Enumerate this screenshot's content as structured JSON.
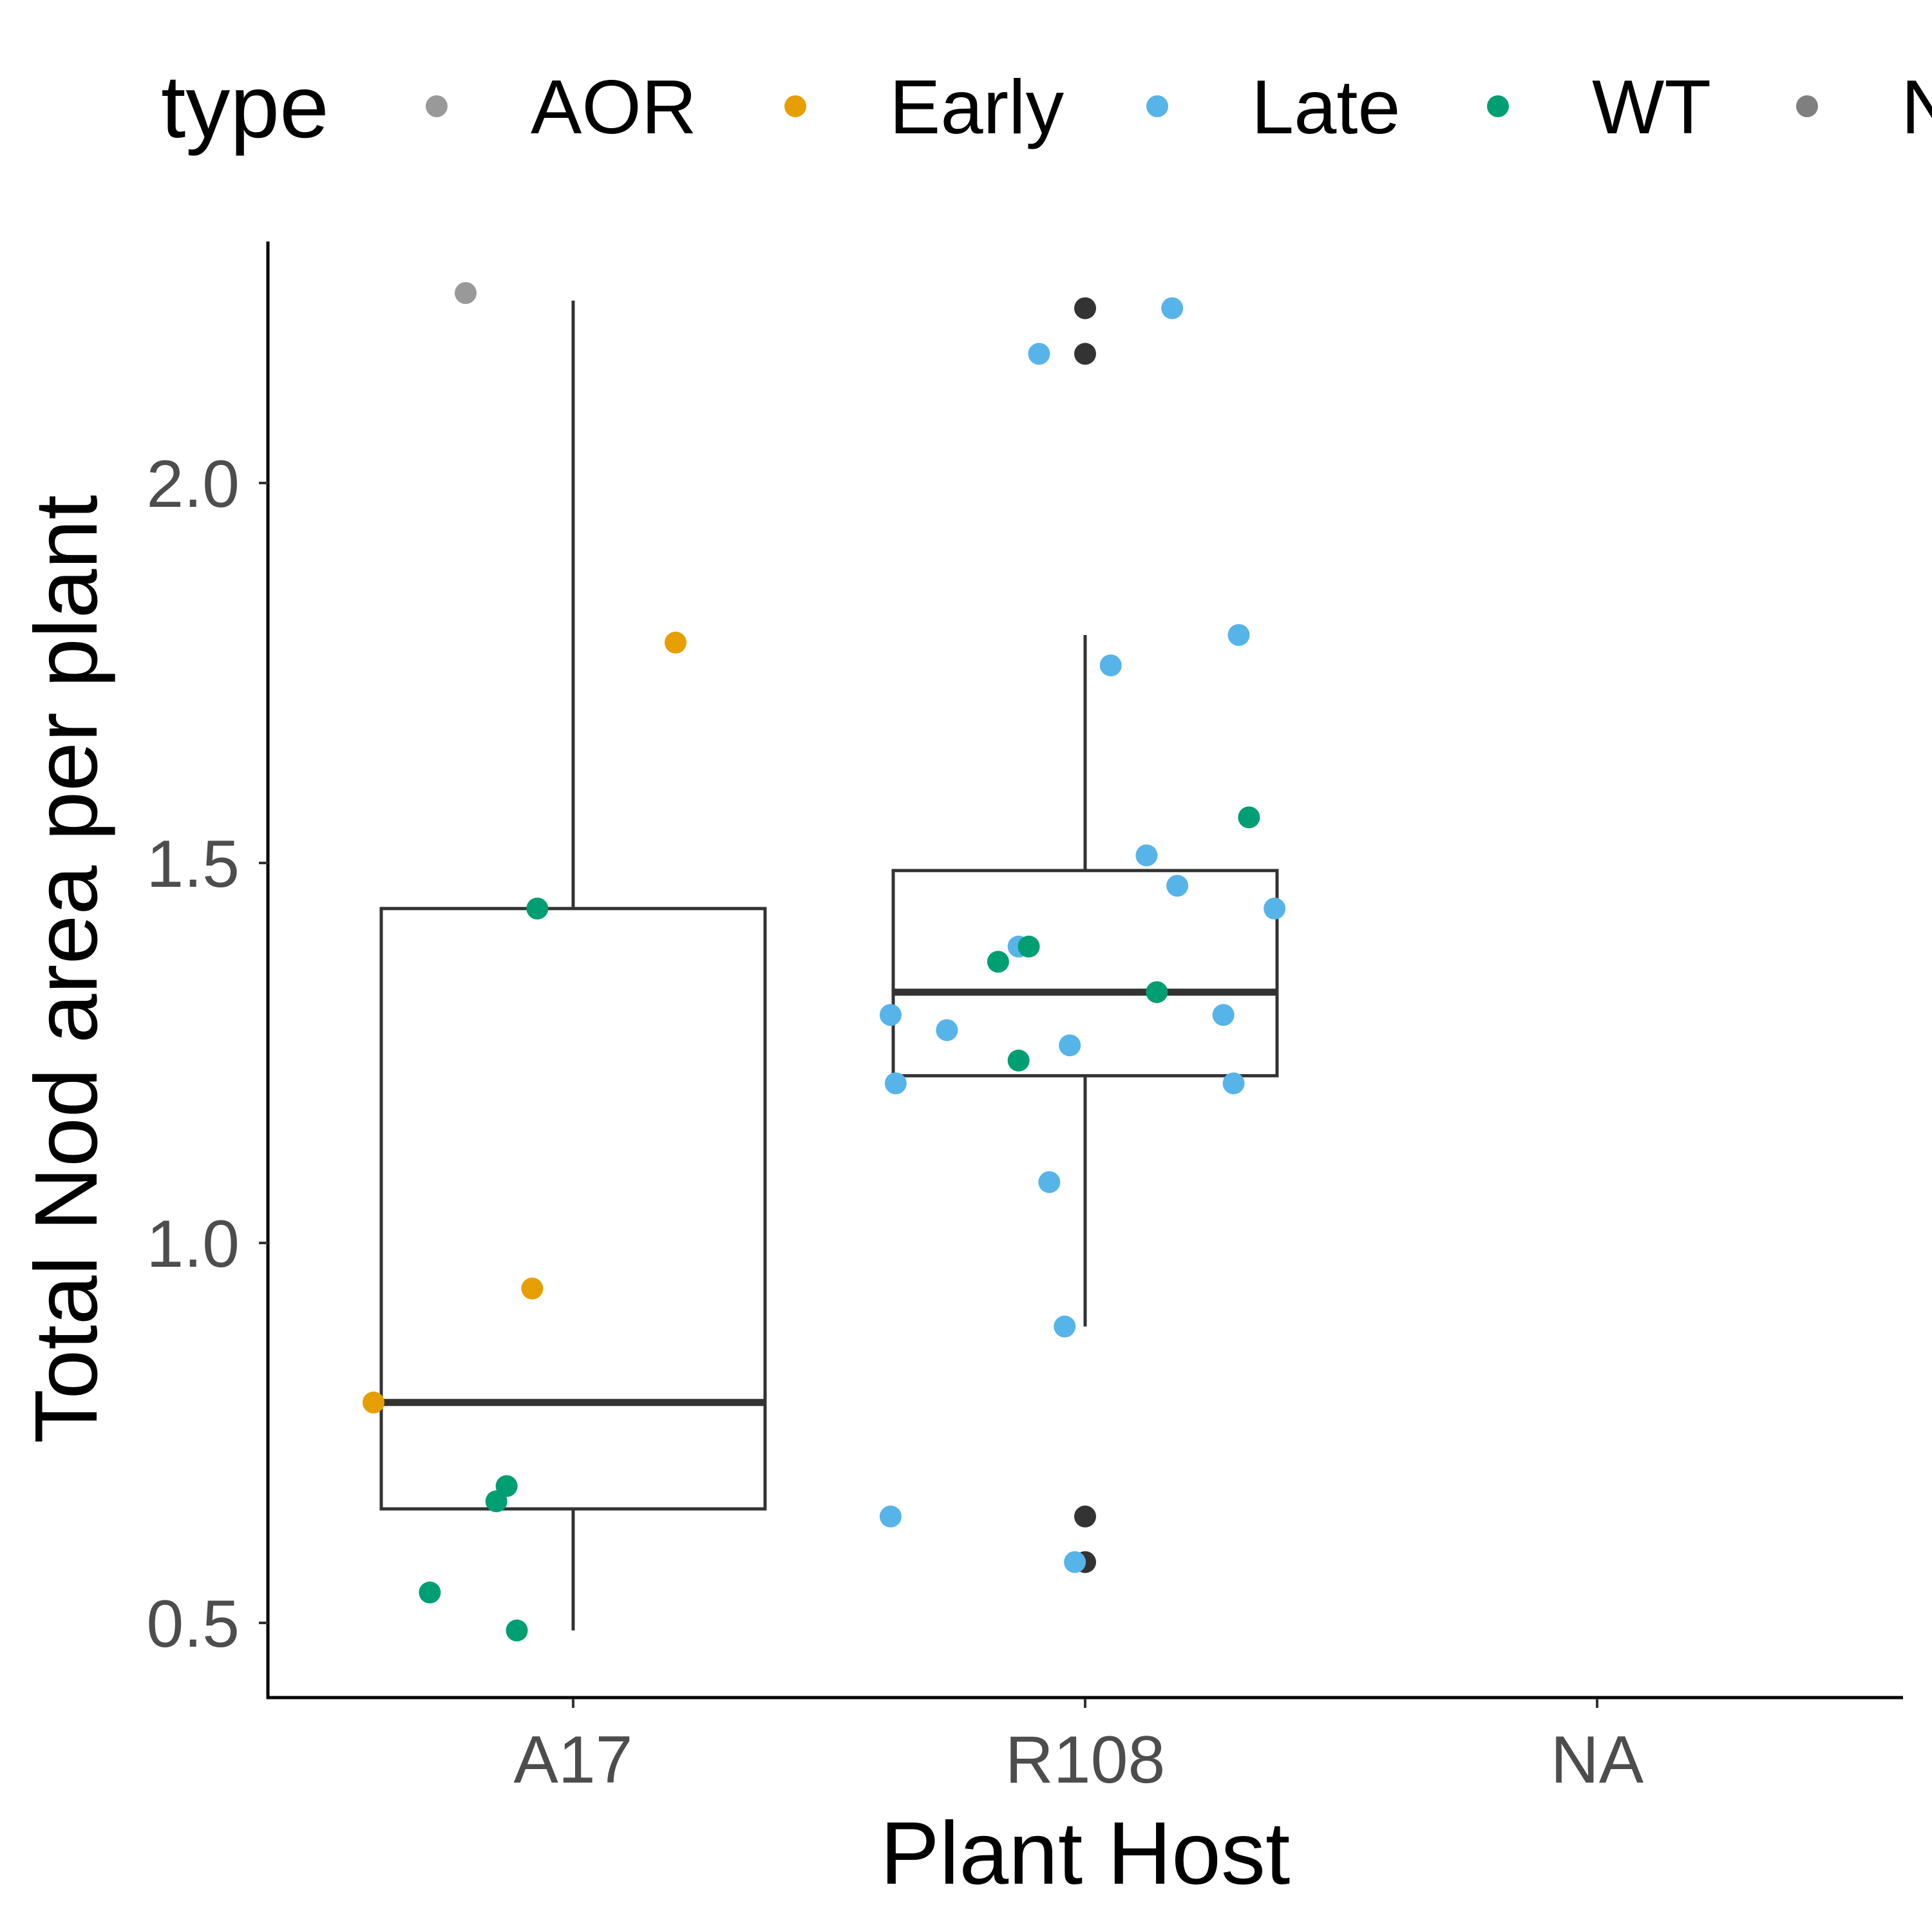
{
  "chart_data": {
    "type": "box",
    "xlabel": "Plant Host",
    "ylabel": "Total Nod area per plant",
    "categories": [
      "A17",
      "R108",
      "NA"
    ],
    "y_ticks": [
      "0.5",
      "1.0",
      "1.5",
      "2.0"
    ],
    "ylim": [
      0.4,
      2.32
    ],
    "grid": false,
    "legend": {
      "title": "type",
      "position": "top",
      "entries": [
        {
          "label": "AOR",
          "color": "#999999"
        },
        {
          "label": "Early",
          "color": "#E69F00"
        },
        {
          "label": "Late",
          "color": "#56B4E9"
        },
        {
          "label": "WT",
          "color": "#009E73"
        },
        {
          "label": "NA",
          "color": "#7F7F7F"
        }
      ]
    },
    "boxes": [
      {
        "category": "A17",
        "whisker_low": 0.49,
        "q1": 0.65,
        "median": 0.79,
        "q3": 1.44,
        "whisker_high": 2.24
      },
      {
        "category": "R108",
        "whisker_low": 0.89,
        "q1": 1.22,
        "median": 1.33,
        "q3": 1.49,
        "whisker_high": 1.8
      },
      {
        "category": "NA"
      }
    ],
    "outliers": [
      {
        "category": "R108",
        "y": 2.23
      },
      {
        "category": "R108",
        "y": 2.17
      },
      {
        "category": "R108",
        "y": 0.64
      },
      {
        "category": "R108",
        "y": 0.58
      }
    ],
    "points": [
      {
        "category": "A17",
        "type": "AOR",
        "jitter": -0.21,
        "y": 2.25
      },
      {
        "category": "A17",
        "type": "Early",
        "jitter": 0.2,
        "y": 1.79
      },
      {
        "category": "A17",
        "type": "Early",
        "jitter": -0.08,
        "y": 0.94
      },
      {
        "category": "A17",
        "type": "Early",
        "jitter": -0.39,
        "y": 0.79
      },
      {
        "category": "A17",
        "type": "WT",
        "jitter": -0.07,
        "y": 1.44
      },
      {
        "category": "A17",
        "type": "WT",
        "jitter": -0.13,
        "y": 0.68
      },
      {
        "category": "A17",
        "type": "WT",
        "jitter": -0.15,
        "y": 0.66
      },
      {
        "category": "A17",
        "type": "WT",
        "jitter": -0.28,
        "y": 0.54
      },
      {
        "category": "A17",
        "type": "WT",
        "jitter": -0.11,
        "y": 0.49
      },
      {
        "category": "R108",
        "type": "Late",
        "jitter": 0.17,
        "y": 2.23
      },
      {
        "category": "R108",
        "type": "Late",
        "jitter": -0.09,
        "y": 2.17
      },
      {
        "category": "R108",
        "type": "Late",
        "jitter": 0.3,
        "y": 1.8
      },
      {
        "category": "R108",
        "type": "Late",
        "jitter": 0.05,
        "y": 1.76
      },
      {
        "category": "R108",
        "type": "Late",
        "jitter": 0.12,
        "y": 1.51
      },
      {
        "category": "R108",
        "type": "Late",
        "jitter": 0.18,
        "y": 1.47
      },
      {
        "category": "R108",
        "type": "Late",
        "jitter": 0.37,
        "y": 1.44
      },
      {
        "category": "R108",
        "type": "Late",
        "jitter": -0.13,
        "y": 1.39
      },
      {
        "category": "R108",
        "type": "Late",
        "jitter": -0.38,
        "y": 1.3
      },
      {
        "category": "R108",
        "type": "Late",
        "jitter": 0.27,
        "y": 1.3
      },
      {
        "category": "R108",
        "type": "Late",
        "jitter": -0.27,
        "y": 1.28
      },
      {
        "category": "R108",
        "type": "Late",
        "jitter": -0.03,
        "y": 1.26
      },
      {
        "category": "R108",
        "type": "Late",
        "jitter": -0.37,
        "y": 1.21
      },
      {
        "category": "R108",
        "type": "Late",
        "jitter": 0.29,
        "y": 1.21
      },
      {
        "category": "R108",
        "type": "Late",
        "jitter": -0.07,
        "y": 1.08
      },
      {
        "category": "R108",
        "type": "Late",
        "jitter": -0.04,
        "y": 0.89
      },
      {
        "category": "R108",
        "type": "Late",
        "jitter": -0.38,
        "y": 0.64
      },
      {
        "category": "R108",
        "type": "Late",
        "jitter": -0.02,
        "y": 0.58
      },
      {
        "category": "R108",
        "type": "WT",
        "jitter": 0.32,
        "y": 1.56
      },
      {
        "category": "R108",
        "type": "WT",
        "jitter": -0.11,
        "y": 1.39
      },
      {
        "category": "R108",
        "type": "WT",
        "jitter": -0.17,
        "y": 1.37
      },
      {
        "category": "R108",
        "type": "WT",
        "jitter": 0.14,
        "y": 1.33
      },
      {
        "category": "R108",
        "type": "WT",
        "jitter": -0.13,
        "y": 1.24
      }
    ],
    "outlier_color": "#333333"
  }
}
